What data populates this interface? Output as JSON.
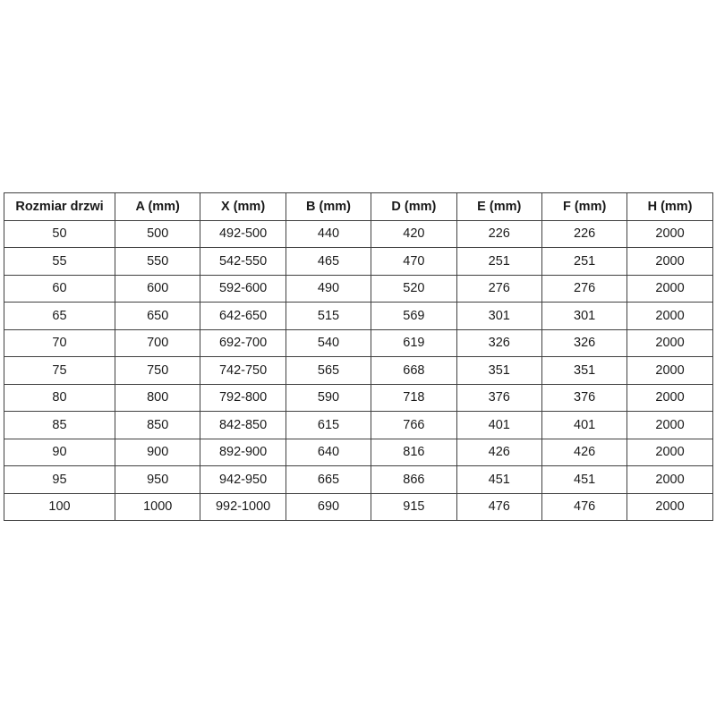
{
  "page": {
    "background_color": "#ffffff"
  },
  "table": {
    "border_color": "#404040",
    "text_color": "#1a1a1a",
    "headers": [
      "Rozmiar drzwi",
      "A (mm)",
      "X (mm)",
      "B (mm)",
      "D (mm)",
      "E (mm)",
      "F (mm)",
      "H (mm)"
    ],
    "rows": [
      [
        "50",
        "500",
        "492-500",
        "440",
        "420",
        "226",
        "226",
        "2000"
      ],
      [
        "55",
        "550",
        "542-550",
        "465",
        "470",
        "251",
        "251",
        "2000"
      ],
      [
        "60",
        "600",
        "592-600",
        "490",
        "520",
        "276",
        "276",
        "2000"
      ],
      [
        "65",
        "650",
        "642-650",
        "515",
        "569",
        "301",
        "301",
        "2000"
      ],
      [
        "70",
        "700",
        "692-700",
        "540",
        "619",
        "326",
        "326",
        "2000"
      ],
      [
        "75",
        "750",
        "742-750",
        "565",
        "668",
        "351",
        "351",
        "2000"
      ],
      [
        "80",
        "800",
        "792-800",
        "590",
        "718",
        "376",
        "376",
        "2000"
      ],
      [
        "85",
        "850",
        "842-850",
        "615",
        "766",
        "401",
        "401",
        "2000"
      ],
      [
        "90",
        "900",
        "892-900",
        "640",
        "816",
        "426",
        "426",
        "2000"
      ],
      [
        "95",
        "950",
        "942-950",
        "665",
        "866",
        "451",
        "451",
        "2000"
      ],
      [
        "100",
        "1000",
        "992-1000",
        "690",
        "915",
        "476",
        "476",
        "2000"
      ]
    ]
  }
}
